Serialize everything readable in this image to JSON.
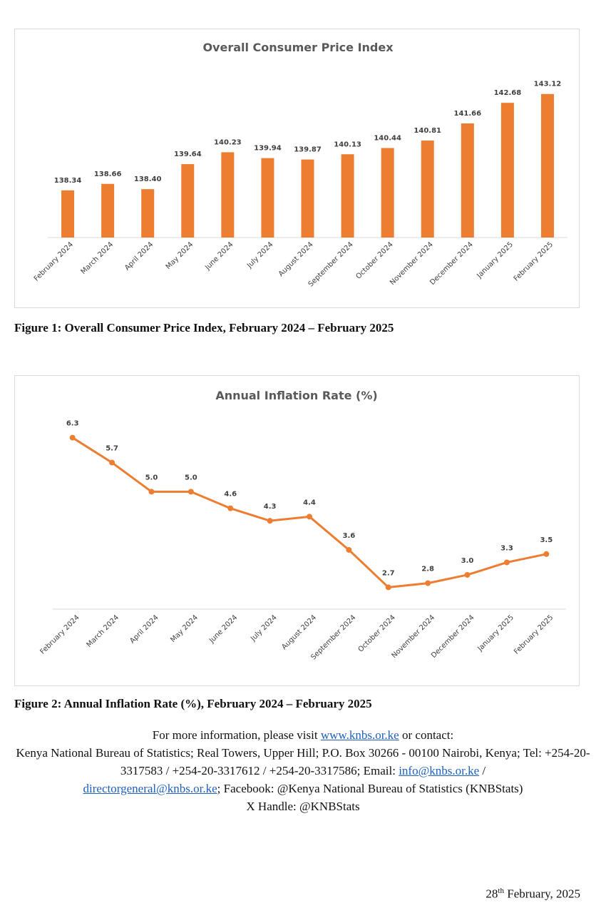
{
  "charts": [
    {
      "type": "bar",
      "title": "Overall Consumer Price Index",
      "categories": [
        "February 2024",
        "March 2024",
        "April 2024",
        "May 2024",
        "June 2024",
        "July 2024",
        "August 2024",
        "September 2024",
        "October 2024",
        "November 2024",
        "December 2024",
        "January 2025",
        "February 2025"
      ],
      "values": [
        138.34,
        138.66,
        138.4,
        139.64,
        140.23,
        139.94,
        139.87,
        140.13,
        140.44,
        140.81,
        141.66,
        142.68,
        143.12
      ],
      "value_labels": [
        "138.34",
        "138.66",
        "138.40",
        "139.64",
        "140.23",
        "139.94",
        "139.87",
        "140.13",
        "140.44",
        "140.81",
        "141.66",
        "142.68",
        "143.12"
      ],
      "ylim": [
        136.0,
        143.5
      ],
      "color": "#ed7d31",
      "grid": false,
      "legend": "none"
    },
    {
      "type": "line",
      "title": "Annual Inflation Rate (%)",
      "categories": [
        "February 2024",
        "March 2024",
        "April 2024",
        "May 2024",
        "June 2024",
        "July 2024",
        "August 2024",
        "September 2024",
        "October 2024",
        "November 2024",
        "December 2024",
        "January 2025",
        "February 2025"
      ],
      "values": [
        6.3,
        5.7,
        5.0,
        5.0,
        4.6,
        4.3,
        4.4,
        3.6,
        2.7,
        2.8,
        3.0,
        3.3,
        3.5
      ],
      "value_labels": [
        "6.3",
        "5.7",
        "5.0",
        "5.0",
        "4.6",
        "4.3",
        "4.4",
        "3.6",
        "2.7",
        "2.8",
        "3.0",
        "3.3",
        "3.5"
      ],
      "ylim": [
        2.45,
        6.55
      ],
      "color": "#ed7d31",
      "grid": false,
      "legend": "none"
    }
  ],
  "captions": {
    "figure1": "Figure 1: Overall Consumer Price Index, February 2024 – February 2025",
    "figure2": "Figure 2: Annual Inflation Rate (%), February 2024 – February 2025"
  },
  "footer": {
    "line1_prefix": "For more information, please visit ",
    "website": "www.knbs.or.ke",
    "line1_suffix": " or contact:",
    "address": "Kenya National Bureau of Statistics; Real Towers, Upper Hill; P.O. Box 30266 - 00100 Nairobi, Kenya; Tel: +254-20-3317583 / +254-20-3317612 / +254-20-3317586; Email: ",
    "email1": "info@knbs.or.ke",
    "separator": " /",
    "email2": "directorgeneral@knbs.or.ke",
    "facebook": "; Facebook: @Kenya National Bureau of Statistics (KNBStats)",
    "x_handle": "X Handle: @KNBStats"
  },
  "date": {
    "day": "28",
    "suffix": "th",
    "rest": " February, 2025"
  },
  "chart_data": [
    {
      "type": "bar",
      "title": "Overall Consumer Price Index",
      "categories": [
        "February 2024",
        "March 2024",
        "April 2024",
        "May 2024",
        "June 2024",
        "July 2024",
        "August 2024",
        "September 2024",
        "October 2024",
        "November 2024",
        "December 2024",
        "January 2025",
        "February 2025"
      ],
      "values": [
        138.34,
        138.66,
        138.4,
        139.64,
        140.23,
        139.94,
        139.87,
        140.13,
        140.44,
        140.81,
        141.66,
        142.68,
        143.12
      ],
      "xlabel": "",
      "ylabel": "",
      "grid": false,
      "legend": "none"
    },
    {
      "type": "line",
      "title": "Annual Inflation Rate (%)",
      "categories": [
        "February 2024",
        "March 2024",
        "April 2024",
        "May 2024",
        "June 2024",
        "July 2024",
        "August 2024",
        "September 2024",
        "October 2024",
        "November 2024",
        "December 2024",
        "January 2025",
        "February 2025"
      ],
      "values": [
        6.3,
        5.7,
        5.0,
        5.0,
        4.6,
        4.3,
        4.4,
        3.6,
        2.7,
        2.8,
        3.0,
        3.3,
        3.5
      ],
      "xlabel": "",
      "ylabel": "",
      "grid": false,
      "legend": "none"
    }
  ]
}
